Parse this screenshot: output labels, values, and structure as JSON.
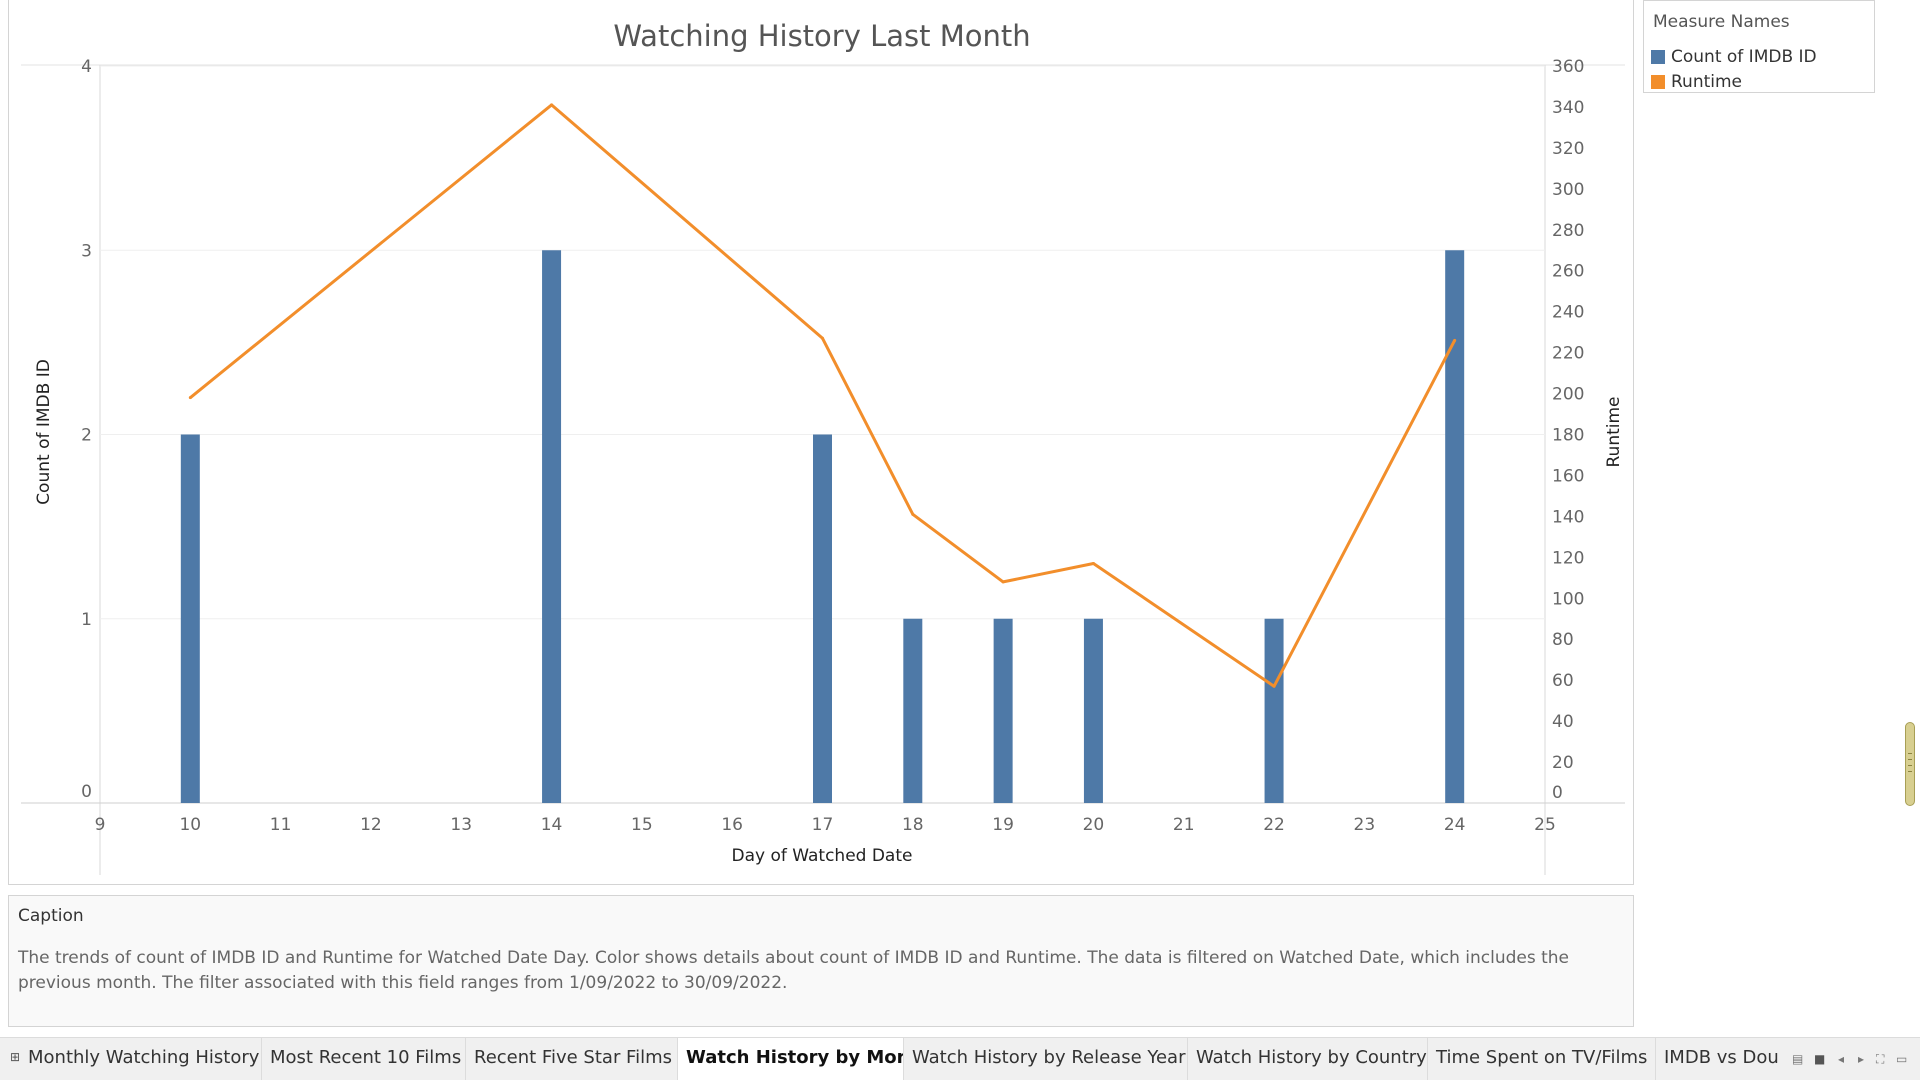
{
  "chart_data": {
    "type": "bar",
    "title": "Watching History Last Month",
    "xlabel": "Day of Watched Date",
    "ylabel": "Count of IMDB ID",
    "y2label": "Runtime",
    "x_ticks": [
      9,
      10,
      11,
      12,
      13,
      14,
      15,
      16,
      17,
      18,
      19,
      20,
      21,
      22,
      23,
      24,
      25
    ],
    "xlim": [
      9,
      25
    ],
    "ylim": [
      0,
      4
    ],
    "y_ticks": [
      0,
      1,
      2,
      3,
      4
    ],
    "y2lim": [
      0,
      360
    ],
    "y2_ticks": [
      0,
      20,
      40,
      60,
      80,
      100,
      120,
      140,
      160,
      180,
      200,
      220,
      240,
      260,
      280,
      300,
      320,
      340,
      360
    ],
    "grid": true,
    "legend_position": "top-right",
    "series": [
      {
        "name": "Count of IMDB ID",
        "type": "bar",
        "axis": "left",
        "color": "#4e79a7",
        "x": [
          10,
          14,
          17,
          18,
          19,
          20,
          22,
          24
        ],
        "values": [
          2,
          3,
          2,
          1,
          1,
          1,
          1,
          3
        ]
      },
      {
        "name": "Runtime",
        "type": "line",
        "axis": "right",
        "color": "#f28e2b",
        "x": [
          10,
          14,
          17,
          18,
          19,
          20,
          22,
          24
        ],
        "values": [
          198,
          341,
          227,
          141,
          108,
          117,
          57,
          226
        ]
      }
    ]
  },
  "legend": {
    "title": "Measure Names",
    "items": [
      {
        "label": "Count of IMDB ID",
        "color": "#4e79a7"
      },
      {
        "label": "Runtime",
        "color": "#f28e2b"
      }
    ]
  },
  "caption": {
    "title": "Caption",
    "text": "The trends of count of IMDB ID and Runtime for Watched Date Day.  Color shows details about count of IMDB ID and Runtime. The data is filtered on Watched Date, which includes the previous month. The filter associated with this field ranges from 1/09/2022 to 30/09/2022."
  },
  "tabs": [
    {
      "label": "Monthly Watching History",
      "active": false
    },
    {
      "label": "Most Recent 10 Films",
      "active": false
    },
    {
      "label": "Recent Five Star Films",
      "active": false
    },
    {
      "label": "Watch History by Month",
      "active": true
    },
    {
      "label": "Watch History by Release Year",
      "active": false
    },
    {
      "label": "Watch History by Country",
      "active": false
    },
    {
      "label": "Time Spent on TV/Films",
      "active": false
    },
    {
      "label": "IMDB vs Douban",
      "active": false
    }
  ],
  "icons": {
    "tab_grid": "grid-icon",
    "controls": [
      "sheet-view-icon",
      "filmstrip-icon",
      "prev-tab-icon",
      "next-tab-icon",
      "fullscreen-icon",
      "present-icon"
    ]
  }
}
